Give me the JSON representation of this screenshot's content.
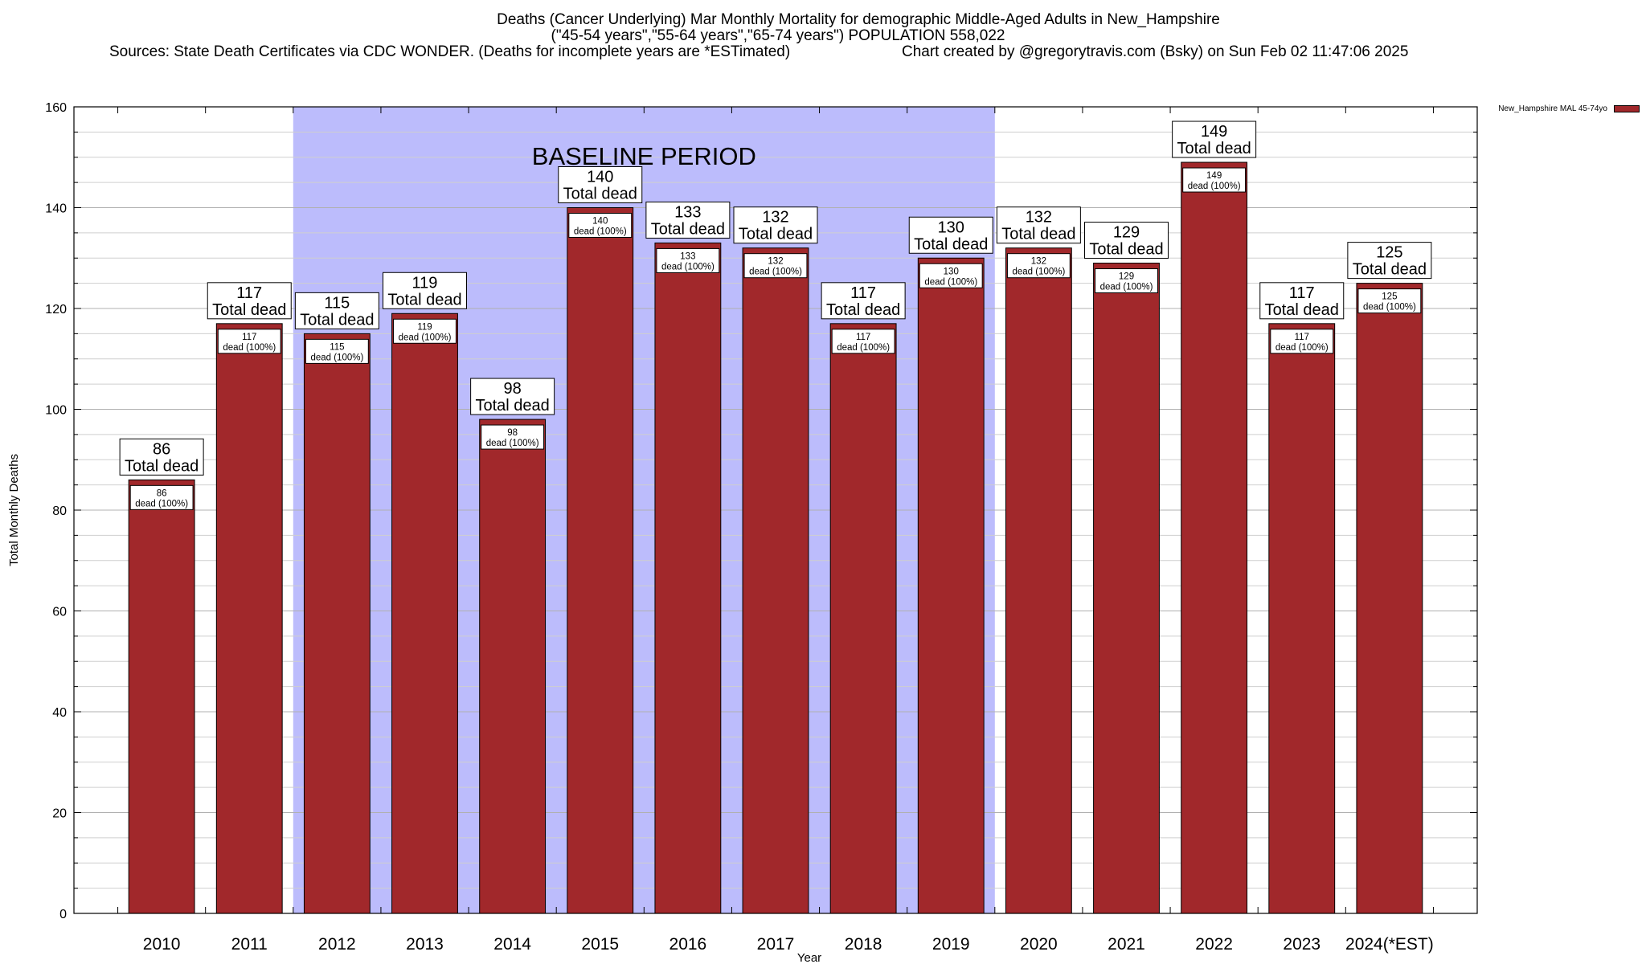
{
  "chart_data": {
    "type": "bar",
    "title_lines": [
      "Deaths (Cancer Underlying) Mar Monthly Mortality for demographic Middle-Aged Adults in New_Hampshire",
      "(\"45-54 years\",\"55-64 years\",\"65-74 years\") POPULATION 558,022",
      "Sources: State Death Certificates via CDC WONDER. (Deaths for incomplete years are *ESTimated)"
    ],
    "credit": "Chart created by @gregorytravis.com (Bsky) on Sun Feb 02 11:47:06 2025",
    "xlabel": "Year",
    "ylabel": "Total Monthly Deaths",
    "ylim": [
      0,
      160
    ],
    "yticks": [
      0,
      20,
      40,
      60,
      80,
      100,
      120,
      140,
      160
    ],
    "minor_y_step": 5,
    "grid": true,
    "categories": [
      "2010",
      "2011",
      "2012",
      "2013",
      "2014",
      "2015",
      "2016",
      "2017",
      "2018",
      "2019",
      "2020",
      "2021",
      "2022",
      "2023",
      "2024(*EST)"
    ],
    "series": [
      {
        "name": "New_Hampshire MAL 45-74yo",
        "color": "#a1282b",
        "values": [
          86,
          117,
          115,
          119,
          98,
          140,
          133,
          132,
          117,
          130,
          132,
          129,
          149,
          117,
          125
        ]
      }
    ],
    "total_label_text": "Total dead",
    "inner_label_text": "dead (100%)",
    "baseline": {
      "label": "BASELINE PERIOD",
      "start": "2012",
      "end": "2019",
      "color": "#bcbcfc"
    },
    "legend_position": "top-right"
  }
}
